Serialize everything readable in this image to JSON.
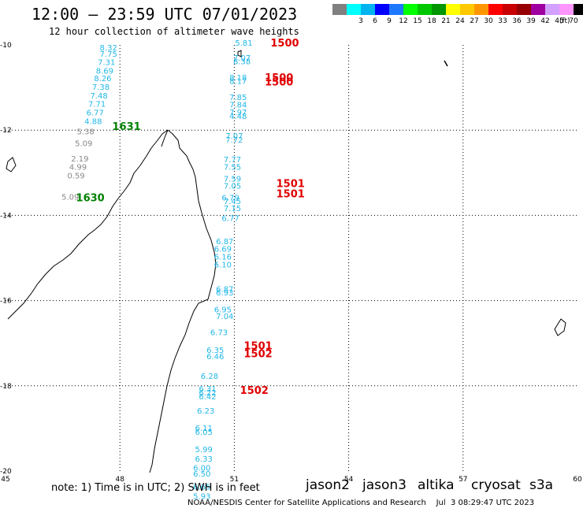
{
  "header": {
    "title": "12:00 – 23:59 UTC 07/01/2023",
    "subtitle": "12 hour collection of altimeter wave heights"
  },
  "legend": {
    "unit": "(ft)",
    "items": [
      {
        "label": "",
        "color": "#808080"
      },
      {
        "label": "3",
        "color": "#00ffff"
      },
      {
        "label": "6",
        "color": "#00b4f0"
      },
      {
        "label": "9",
        "color": "#0000ff"
      },
      {
        "label": "12",
        "color": "#1e78ff"
      },
      {
        "label": "15",
        "color": "#00ff00"
      },
      {
        "label": "18",
        "color": "#00c800"
      },
      {
        "label": "21",
        "color": "#009600"
      },
      {
        "label": "24",
        "color": "#ffff00"
      },
      {
        "label": "27",
        "color": "#ffc800"
      },
      {
        "label": "30",
        "color": "#ff9600"
      },
      {
        "label": "33",
        "color": "#ff0000"
      },
      {
        "label": "36",
        "color": "#c80000"
      },
      {
        "label": "39",
        "color": "#960000"
      },
      {
        "label": "42",
        "color": "#a000a0"
      },
      {
        "label": "45",
        "color": "#d2a0ff"
      },
      {
        "label": "70",
        "color": "#ff96ff"
      },
      {
        "label": "",
        "color": "#000000"
      }
    ]
  },
  "axes": {
    "lon_ticks": [
      45,
      48,
      51,
      54,
      57,
      60
    ],
    "lat_ticks": [
      -10,
      -12,
      -14,
      -16,
      -18,
      -20
    ],
    "lat_labels": [
      "-10",
      "-12",
      "-14",
      "-16",
      "-18",
      "-20"
    ],
    "lon_labels": [
      "45",
      "48",
      "51",
      "54",
      "57",
      "60"
    ],
    "lon_range": [
      45,
      60
    ],
    "lat_range": [
      -20,
      -10
    ]
  },
  "tracks": [
    {
      "color": "#22b8e8",
      "points": [
        [
          47.7,
          -10.06,
          "8.32"
        ],
        [
          47.7,
          -10.2,
          "7.75"
        ],
        [
          47.65,
          -10.4,
          "7.31"
        ],
        [
          47.6,
          -10.6,
          "8.69"
        ],
        [
          47.55,
          -10.78,
          "8.26"
        ],
        [
          47.5,
          -10.98,
          "7.38"
        ],
        [
          47.45,
          -11.18,
          "7.48"
        ],
        [
          47.4,
          -11.38,
          "7.71"
        ],
        [
          47.35,
          -11.58,
          "6.77"
        ],
        [
          47.3,
          -11.78,
          "4.88"
        ]
      ]
    },
    {
      "color": "#22b8e8",
      "points": [
        [
          51.25,
          -9.94,
          "5.81"
        ],
        [
          51.2,
          -10.3,
          "7.07"
        ],
        [
          51.2,
          -10.38,
          "8.38"
        ],
        [
          51.1,
          -10.76,
          "8.18"
        ],
        [
          51.1,
          -10.84,
          "8.17"
        ],
        [
          51.1,
          -11.22,
          "7.85"
        ],
        [
          51.1,
          -11.4,
          "7.84"
        ],
        [
          51.1,
          -11.57,
          "7.97"
        ],
        [
          51.1,
          -11.66,
          "4.48"
        ],
        [
          51.0,
          -12.13,
          "7.07"
        ],
        [
          51.0,
          -12.22,
          "7.72"
        ],
        [
          50.95,
          -12.68,
          "7.77"
        ],
        [
          50.95,
          -12.86,
          "7.55"
        ],
        [
          50.95,
          -13.13,
          "7.59"
        ],
        [
          50.95,
          -13.3,
          "7.05"
        ],
        [
          50.9,
          -13.58,
          "6.79"
        ],
        [
          50.95,
          -13.66,
          "7.45"
        ],
        [
          50.95,
          -13.83,
          "7.15"
        ],
        [
          50.9,
          -14.06,
          "6.77"
        ],
        [
          50.75,
          -14.6,
          "6.87"
        ],
        [
          50.7,
          -14.78,
          "6.69"
        ],
        [
          50.7,
          -14.96,
          "6.16"
        ],
        [
          50.7,
          -15.15,
          "6.10"
        ],
        [
          50.75,
          -15.72,
          "6.87"
        ],
        [
          50.75,
          -15.8,
          "6.93"
        ],
        [
          50.7,
          -16.2,
          "6.95"
        ],
        [
          50.75,
          -16.36,
          "7.04"
        ],
        [
          50.6,
          -16.74,
          "6.73"
        ],
        [
          50.5,
          -17.15,
          "6.35"
        ],
        [
          50.5,
          -17.3,
          "6.46"
        ],
        [
          50.35,
          -17.76,
          "6.28"
        ],
        [
          50.3,
          -18.06,
          "6.31"
        ],
        [
          50.3,
          -18.15,
          "6.22"
        ],
        [
          50.3,
          -18.24,
          "6.42"
        ],
        [
          50.25,
          -18.58,
          "6.23"
        ],
        [
          50.2,
          -18.98,
          "6.11"
        ],
        [
          50.2,
          -19.08,
          "6.05"
        ],
        [
          50.2,
          -19.48,
          "5.99"
        ],
        [
          50.2,
          -19.7,
          "6.33"
        ],
        [
          50.15,
          -19.92,
          "6.00"
        ],
        [
          50.15,
          -20.06,
          "6.50"
        ],
        [
          50.15,
          -20.36,
          "6.65"
        ],
        [
          50.15,
          -20.58,
          "5.93"
        ]
      ]
    },
    {
      "color": "#888888",
      "points": [
        [
          47.1,
          -12.02,
          "5.38"
        ],
        [
          47.05,
          -12.3,
          "5.09"
        ],
        [
          46.95,
          -12.66,
          "2.19"
        ],
        [
          46.9,
          -12.86,
          "4.99"
        ],
        [
          46.85,
          -13.06,
          "0.59"
        ],
        [
          46.7,
          -13.56,
          "5.09"
        ]
      ]
    }
  ],
  "time_labels": [
    {
      "lon": 51.95,
      "lat": -9.94,
      "text": "1500",
      "color": "#e00000"
    },
    {
      "lon": 51.8,
      "lat": -10.76,
      "text": "1500",
      "color": "#e00000"
    },
    {
      "lon": 51.8,
      "lat": -10.86,
      "text": "1500",
      "color": "#e00000"
    },
    {
      "lon": 47.8,
      "lat": -11.9,
      "text": "1631",
      "color": "#008000"
    },
    {
      "lon": 52.1,
      "lat": -13.24,
      "text": "1501",
      "color": "#e00000"
    },
    {
      "lon": 52.1,
      "lat": -13.48,
      "text": "1501",
      "color": "#e00000"
    },
    {
      "lon": 46.85,
      "lat": -13.58,
      "text": "1630",
      "color": "#008000"
    },
    {
      "lon": 51.25,
      "lat": -17.05,
      "text": "1501",
      "color": "#e00000"
    },
    {
      "lon": 51.25,
      "lat": -17.24,
      "text": "1502",
      "color": "#e00000"
    },
    {
      "lon": 51.15,
      "lat": -18.1,
      "text": "1502",
      "color": "#e00000"
    }
  ],
  "footer": {
    "note": "note:  1) Time is in UTC;  2) SWH is in feet",
    "satellites": [
      {
        "name": "jason2",
        "color": "#0000e0"
      },
      {
        "name": "jason3",
        "color": "#009000"
      },
      {
        "name": "altika",
        "color": "#ff9a00"
      },
      {
        "name": "cryosat",
        "color": "#e00000"
      },
      {
        "name": "s3a",
        "color": "#800000"
      }
    ],
    "credit": "NOAA/NESDIS Center for Satellite Applications and Research    Jul  3 08:29:47 UTC 2023"
  }
}
